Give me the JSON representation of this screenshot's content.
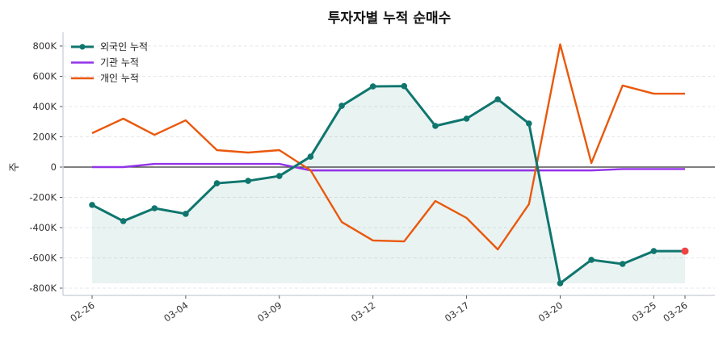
{
  "chart_data": {
    "type": "line",
    "title": "투자자별 누적 순매수",
    "xlabel": "",
    "ylabel": "주",
    "ylim": [
      -840000,
      880000
    ],
    "y_ticks": [
      -800000,
      -600000,
      -400000,
      -200000,
      0,
      200000,
      400000,
      600000,
      800000
    ],
    "y_tick_labels": [
      "-800K",
      "-600K",
      "-400K",
      "-200K",
      "0",
      "200K",
      "400K",
      "600K",
      "800K"
    ],
    "x_count": 20,
    "x_tick_labels": [
      {
        "index": 0,
        "label": "02-26"
      },
      {
        "index": 3,
        "label": "03-04"
      },
      {
        "index": 6,
        "label": "03-09"
      },
      {
        "index": 9,
        "label": "03-12"
      },
      {
        "index": 12,
        "label": "03-17"
      },
      {
        "index": 15,
        "label": "03-20"
      },
      {
        "index": 18,
        "label": "03-25"
      },
      {
        "index": 19,
        "label": "03-26"
      }
    ],
    "grid": "horizontal dashed",
    "legend_position": "top-left",
    "series": [
      {
        "name": "외국인 누적",
        "color": "#0f766e",
        "markers": true,
        "fill_to_min": true,
        "last_point_color": "#ef4444",
        "values": [
          -250000,
          -357000,
          -272000,
          -309000,
          -107000,
          -91000,
          -59000,
          69000,
          405000,
          533000,
          535000,
          272000,
          320000,
          448000,
          288000,
          -768000,
          -613000,
          -640000,
          -555000,
          -555000
        ]
      },
      {
        "name": "기관 누적",
        "color": "#9333ea",
        "markers": false,
        "values": [
          0,
          0,
          21000,
          21000,
          21000,
          21000,
          21000,
          -22000,
          -22000,
          -22000,
          -22000,
          -22000,
          -22000,
          -22000,
          -22000,
          -22000,
          -22000,
          -13000,
          -13000,
          -13000
        ]
      },
      {
        "name": "개인 누적",
        "color": "#ea580c",
        "markers": false,
        "values": [
          224000,
          320000,
          213000,
          309000,
          112000,
          96000,
          112000,
          -21000,
          -363000,
          -485000,
          -491000,
          -224000,
          -336000,
          -544000,
          -245000,
          811000,
          27000,
          539000,
          485000,
          485000
        ]
      }
    ]
  }
}
